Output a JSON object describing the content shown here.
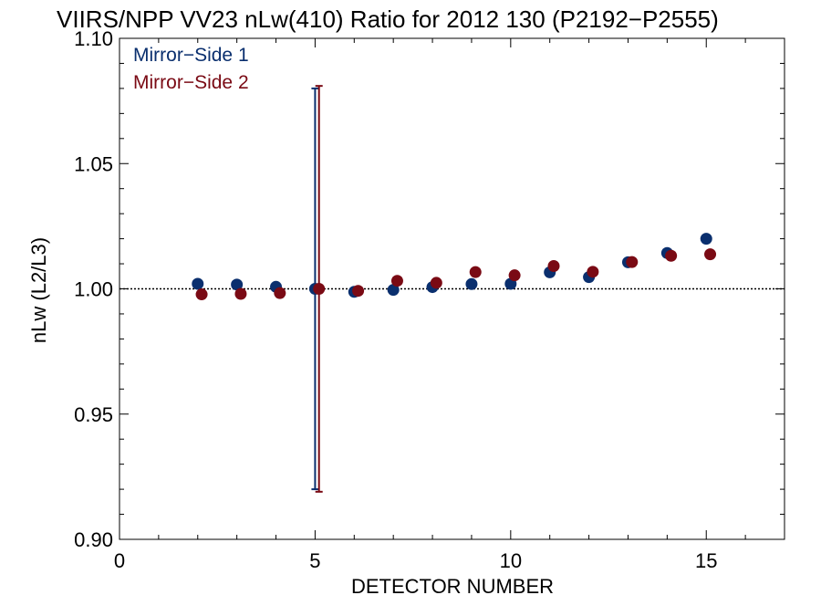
{
  "chart_data": {
    "type": "scatter",
    "title": "VIIRS/NPP VV23 nLw(410) Ratio for 2012 130 (P2192−P2555)",
    "xlabel": "DETECTOR NUMBER",
    "ylabel": "nLw (L2/L3)",
    "xlim": [
      0,
      17
    ],
    "ylim": [
      0.9,
      1.1
    ],
    "x_ticks": [
      "0",
      "5",
      "10",
      "15"
    ],
    "y_ticks": [
      "0.90",
      "0.95",
      "1.00",
      "1.05",
      "1.10"
    ],
    "reference_line": 1.0,
    "grid": false,
    "legend_position": "top-left",
    "series": [
      {
        "name": "Mirror−Side 1",
        "color": "#0a2f6e",
        "x": [
          2,
          3,
          4,
          5,
          6,
          7,
          8,
          9,
          10,
          11,
          12,
          13,
          14,
          15
        ],
        "y": [
          1.002,
          1.0017,
          1.0008,
          1.0,
          0.9988,
          0.9996,
          1.0007,
          1.0019,
          1.002,
          1.0066,
          1.0047,
          1.0106,
          1.0143,
          1.02
        ],
        "error_bars": [
          {
            "x": 5,
            "low": 0.92,
            "high": 1.08
          }
        ]
      },
      {
        "name": "Mirror−Side 2",
        "color": "#7a0a14",
        "x": [
          2,
          3,
          4,
          5,
          6,
          7,
          8,
          9,
          10,
          11,
          12,
          13,
          14,
          15
        ],
        "y": [
          0.9978,
          0.998,
          0.9983,
          1.0,
          0.9992,
          1.0032,
          1.0024,
          1.0067,
          1.0054,
          1.0091,
          1.0068,
          1.0107,
          1.0132,
          1.0138
        ],
        "error_bars": [
          {
            "x": 5,
            "low": 0.919,
            "high": 1.081
          }
        ]
      }
    ]
  }
}
